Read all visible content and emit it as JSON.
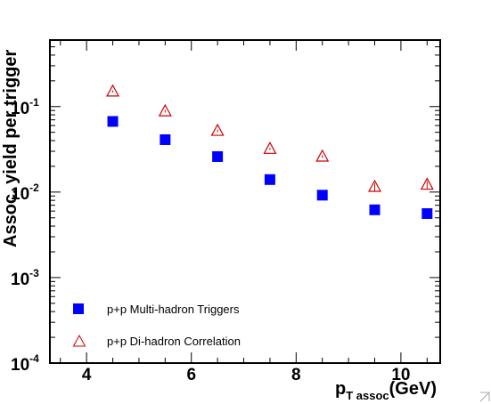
{
  "chart_data": {
    "type": "scatter",
    "xlabel": {
      "main": "p",
      "sub": "T assoc",
      "unit": "(GeV)"
    },
    "ylabel": "Assoc. yield per trigger",
    "xlim": [
      3.3,
      10.75
    ],
    "ylim": [
      0.0001,
      0.6
    ],
    "yscale": "log",
    "x_ticks": [
      "4",
      "6",
      "8",
      "10"
    ],
    "y_ticks": [
      {
        "base": "10",
        "exp": "-4"
      },
      {
        "base": "10",
        "exp": "-3"
      },
      {
        "base": "10",
        "exp": "-2"
      },
      {
        "base": "10",
        "exp": "-1"
      }
    ],
    "legend_position": "bottom-left",
    "series": [
      {
        "name": "p+p Multi-hadron Triggers",
        "marker": "filled-square",
        "color": "#0000ff",
        "x": [
          4.5,
          5.5,
          6.5,
          7.5,
          8.5,
          9.5,
          10.5
        ],
        "y": [
          0.067,
          0.041,
          0.026,
          0.014,
          0.0092,
          0.0062,
          0.0056
        ],
        "err": [
          0.002,
          0.0013,
          0.0008,
          0.0005,
          0.0004,
          0.0004,
          0.0005
        ]
      },
      {
        "name": "p+p Di-hadron Correlation",
        "marker": "open-triangle",
        "color": "#cc0000",
        "x": [
          4.5,
          5.5,
          6.5,
          7.5,
          8.5,
          9.5,
          10.5
        ],
        "y": [
          0.15,
          0.088,
          0.052,
          0.032,
          0.026,
          0.0115,
          0.0122
        ],
        "err": [
          0.004,
          0.003,
          0.002,
          0.001,
          0.001,
          0.0012,
          0.0012
        ]
      }
    ]
  }
}
